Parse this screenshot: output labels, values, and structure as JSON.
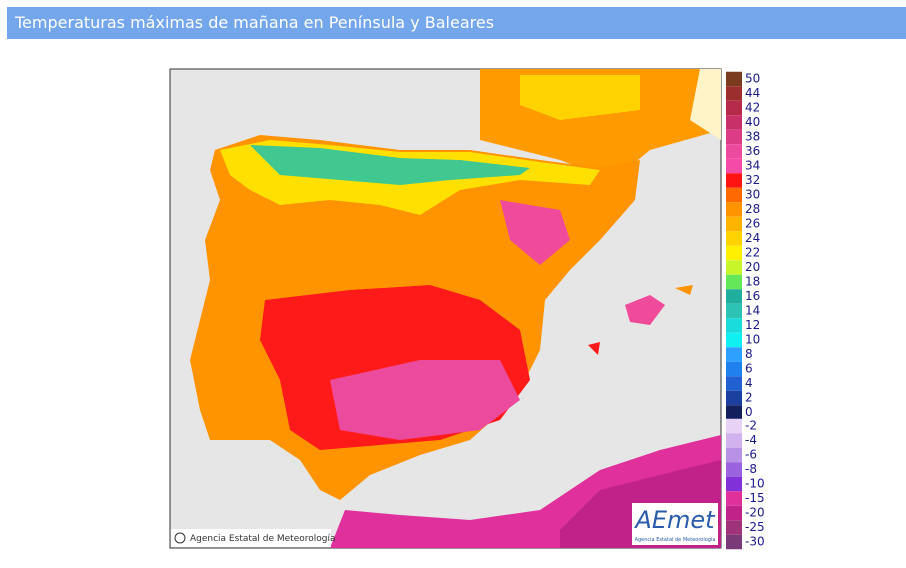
{
  "header": {
    "title": "Temperaturas máximas de mañana en Península y Baleares"
  },
  "map": {
    "credit": "Agencia Estatal de Meteorología"
  },
  "logo": {
    "name": "AEmet",
    "subtitle": "Agencia Estatal de Meteorología"
  },
  "legend": {
    "positive": [
      {
        "label": 50,
        "color": "#7a3b1e"
      },
      {
        "label": 44,
        "color": "#9c2f2e"
      },
      {
        "label": 42,
        "color": "#b42a48"
      },
      {
        "label": 40,
        "color": "#c83068"
      },
      {
        "label": 38,
        "color": "#dc3c86"
      },
      {
        "label": 36,
        "color": "#ec4a9c"
      },
      {
        "label": 34,
        "color": "#f64aa8"
      },
      {
        "label": 32,
        "color": "#ff1414"
      },
      {
        "label": 30,
        "color": "#ff6a00"
      },
      {
        "label": 28,
        "color": "#ff9400"
      },
      {
        "label": 26,
        "color": "#ffb400"
      },
      {
        "label": 24,
        "color": "#ffd200"
      },
      {
        "label": 22,
        "color": "#fff000"
      },
      {
        "label": 20,
        "color": "#c8f52a"
      },
      {
        "label": 18,
        "color": "#64e85a"
      },
      {
        "label": 16,
        "color": "#20ae9e"
      },
      {
        "label": 14,
        "color": "#2cc2b4"
      },
      {
        "label": 12,
        "color": "#1adcdc"
      },
      {
        "label": 10,
        "color": "#10f0f0"
      },
      {
        "label": 8,
        "color": "#2ea0ff"
      },
      {
        "label": 6,
        "color": "#2080ee"
      },
      {
        "label": 4,
        "color": "#2060d0"
      },
      {
        "label": 2,
        "color": "#1c40a0"
      },
      {
        "label": 0,
        "color": "#14205e"
      }
    ],
    "negative": [
      {
        "label": -2,
        "color": "#e8d2f6"
      },
      {
        "label": -4,
        "color": "#d2b2ee"
      },
      {
        "label": -6,
        "color": "#b892e6"
      },
      {
        "label": -8,
        "color": "#9a62de"
      },
      {
        "label": -10,
        "color": "#8032d8"
      },
      {
        "label": -15,
        "color": "#e0309c"
      },
      {
        "label": -20,
        "color": "#c0228a"
      },
      {
        "label": -25,
        "color": "#a0327a"
      },
      {
        "label": -30,
        "color": "#7a3a78"
      }
    ]
  }
}
